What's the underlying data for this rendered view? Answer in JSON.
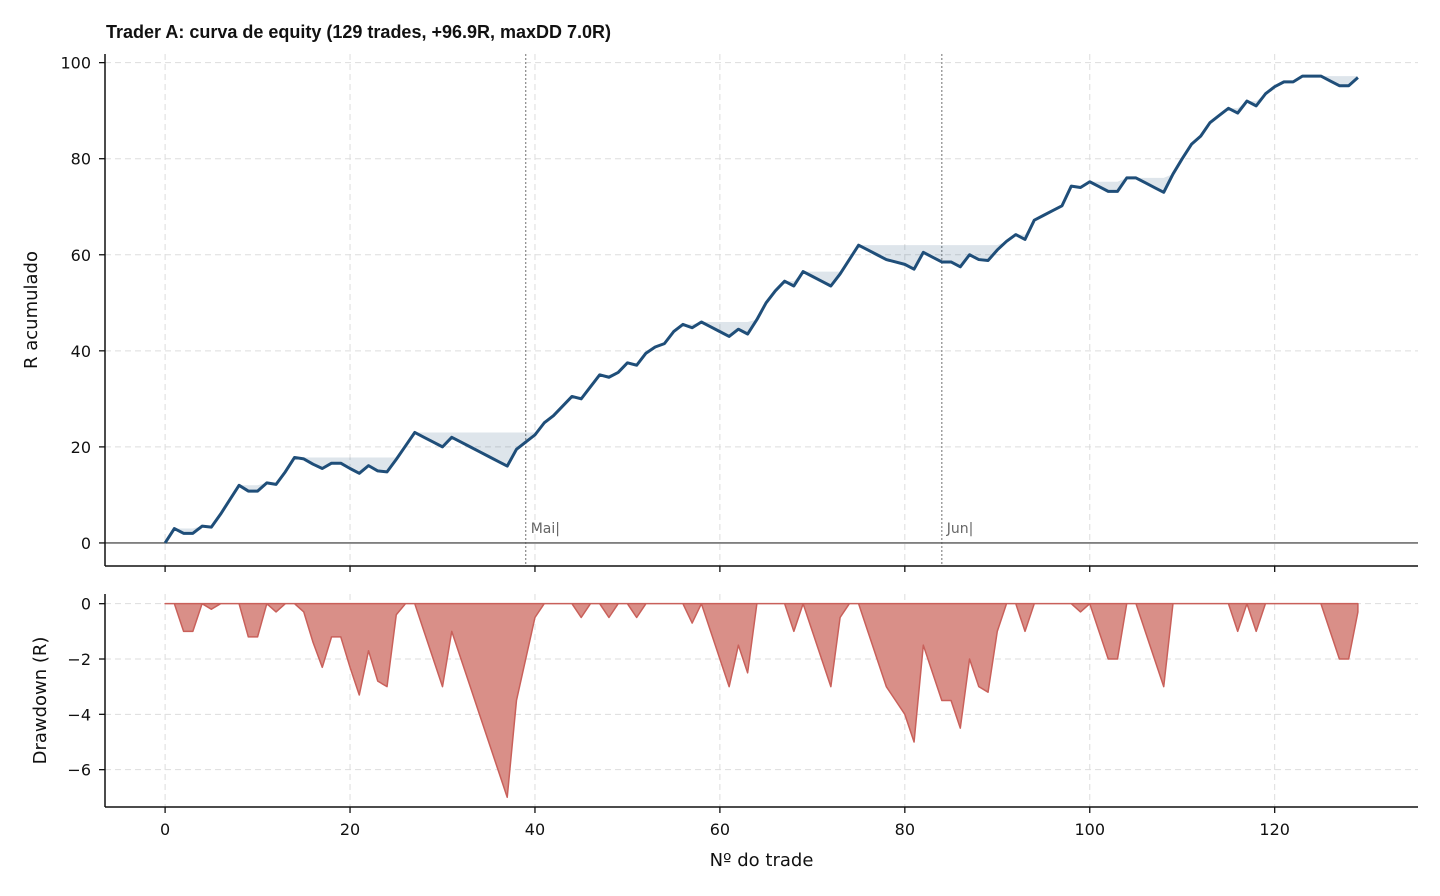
{
  "chart_data": {
    "type": "line",
    "title": "Trader A: curva de equity (129 trades, +96.9R, maxDD 7.0R)",
    "xlabel": "Nº do trade",
    "xlim": [
      -6.5,
      135.5
    ],
    "x_ticks": [
      0,
      20,
      40,
      60,
      80,
      100,
      120
    ],
    "x_tick_labels": [
      "0",
      "20",
      "40",
      "60",
      "80",
      "100",
      "120"
    ],
    "grid": true,
    "panels": [
      {
        "name": "equity",
        "ylabel": "R acumulado",
        "ylim": [
          -4.8,
          101.8
        ],
        "y_ticks": [
          0,
          20,
          40,
          60,
          80,
          100
        ],
        "y_tick_labels": [
          "0",
          "20",
          "40",
          "60",
          "80",
          "100"
        ],
        "line_color": "#1f4e79",
        "shade_color": "#1f4e79",
        "zero_line": true
      },
      {
        "name": "drawdown",
        "ylabel": "Drawdown (R)",
        "ylim": [
          -7.35,
          0.35
        ],
        "y_ticks": [
          0,
          -2,
          -4,
          -6
        ],
        "y_tick_labels": [
          "0",
          "−2",
          "−4",
          "−6"
        ],
        "fill_color": "#d98f88",
        "edge_color": "#c9605a"
      }
    ],
    "annotations": [
      {
        "x": 39,
        "label": "Mai|"
      },
      {
        "x": 84,
        "label": "Jun|"
      }
    ],
    "series": [
      {
        "name": "equity",
        "x_start": 0,
        "values": [
          0,
          3.0,
          2.0,
          2.0,
          3.5,
          3.3,
          6.0,
          9.0,
          12.0,
          10.8,
          10.8,
          12.5,
          12.2,
          14.8,
          17.8,
          17.5,
          16.4,
          15.5,
          16.6,
          16.6,
          15.5,
          14.5,
          16.1,
          15.0,
          14.8,
          17.4,
          20.2,
          23.0,
          22.0,
          21.0,
          20.0,
          22.0,
          21.0,
          20.0,
          19.0,
          18.0,
          17.0,
          16.0,
          19.5,
          21.0,
          22.5,
          25.0,
          26.5,
          28.5,
          30.5,
          30.0,
          32.5,
          35.0,
          34.5,
          35.5,
          37.5,
          37.0,
          39.5,
          40.8,
          41.5,
          44.0,
          45.5,
          44.8,
          46.0,
          45.0,
          44.0,
          43.0,
          44.5,
          43.5,
          46.5,
          50.0,
          52.5,
          54.5,
          53.5,
          56.5,
          55.5,
          54.5,
          53.5,
          56.0,
          59.0,
          62.0,
          61.0,
          60.0,
          59.0,
          58.5,
          58.0,
          57.0,
          60.5,
          59.5,
          58.5,
          58.5,
          57.5,
          60.0,
          59.0,
          58.8,
          61.0,
          62.8,
          64.2,
          63.2,
          67.2,
          68.2,
          69.2,
          70.2,
          74.3,
          74.0,
          75.2,
          74.2,
          73.2,
          73.2,
          76.0,
          76.0,
          75.0,
          74.0,
          73.0,
          76.8,
          80.0,
          83.0,
          84.7,
          87.5,
          89.0,
          90.5,
          89.5,
          92.0,
          91.0,
          93.5,
          95.0,
          96.0,
          96.0,
          97.2,
          97.2,
          97.2,
          96.2,
          95.2,
          95.2,
          96.9
        ]
      }
    ]
  }
}
